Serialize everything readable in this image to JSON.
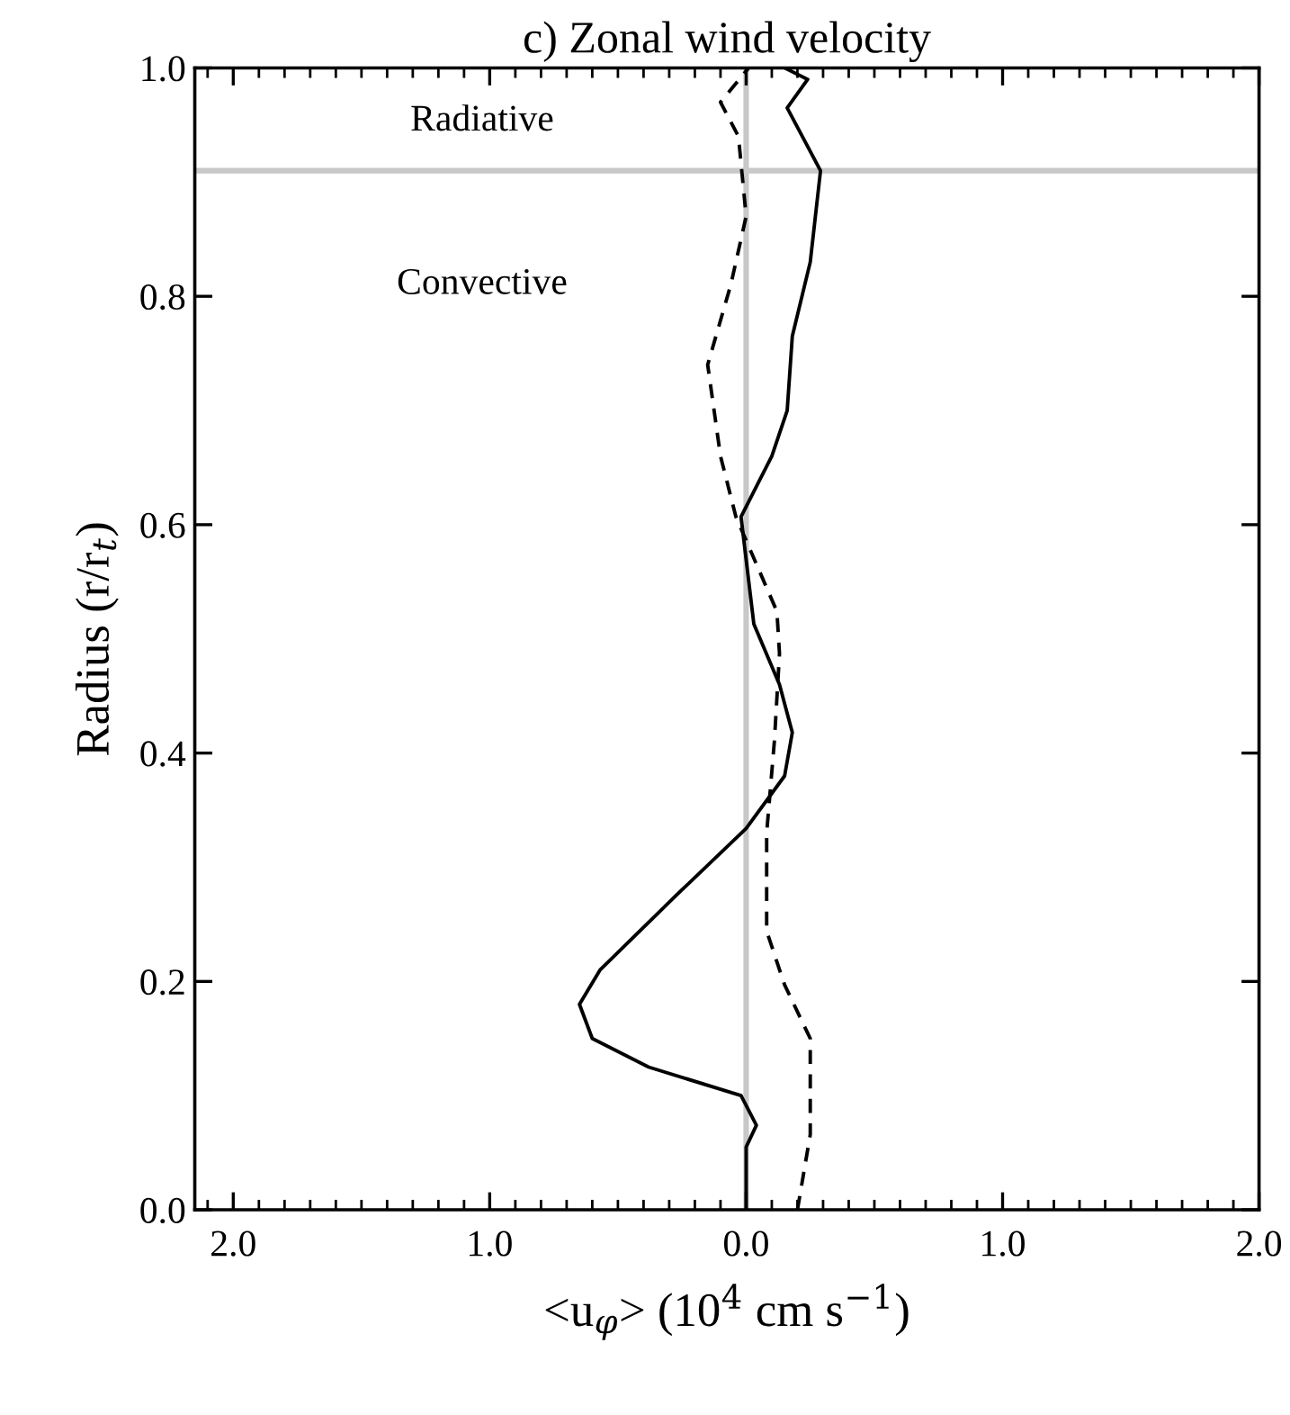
{
  "chart_data": {
    "type": "line",
    "title": "c) Zonal wind velocity",
    "xlabel": "<u$_{φ}$> (10$^{4}$ cm s$^{−1}$)",
    "ylabel": "Radius (r/r$_{t}$)",
    "series": [
      {
        "color": "#000000",
        "line_style": "solid",
        "x": [
          0.0,
          0.0,
          0.04,
          -0.02,
          -0.38,
          -0.6,
          -0.65,
          -0.57,
          -0.27,
          0.0,
          0.15,
          0.18,
          0.13,
          0.03,
          -0.02,
          0.1,
          0.16,
          0.18,
          0.25,
          0.29,
          0.16,
          0.24,
          0.15
        ],
        "values": [
          0.0,
          0.055,
          0.074,
          0.1,
          0.125,
          0.15,
          0.18,
          0.21,
          0.276,
          0.334,
          0.38,
          0.418,
          0.46,
          0.513,
          0.607,
          0.66,
          0.7,
          0.765,
          0.83,
          0.91,
          0.965,
          0.99,
          1.0
        ]
      },
      {
        "color": "#000000",
        "line_style": "dashed",
        "x": [
          0.2,
          0.25,
          0.25,
          0.15,
          0.08,
          0.08,
          0.11,
          0.13,
          0.12,
          -0.04,
          -0.1,
          -0.15,
          -0.06,
          0.0,
          -0.03,
          -0.1,
          0.01
        ],
        "values": [
          0.0,
          0.066,
          0.15,
          0.197,
          0.244,
          0.33,
          0.41,
          0.487,
          0.524,
          0.607,
          0.66,
          0.74,
          0.81,
          0.87,
          0.94,
          0.97,
          1.0
        ]
      }
    ],
    "xlim": [
      -2.15,
      2.0
    ],
    "ylim": [
      0.0,
      1.0
    ],
    "xticks": [
      {
        "value": -2,
        "label": "2.0"
      },
      {
        "value": -1,
        "label": "1.0"
      },
      {
        "value": 0,
        "label": "0.0"
      },
      {
        "value": 1,
        "label": "1.0"
      },
      {
        "value": 2,
        "label": "2.0"
      }
    ],
    "yticks": [
      {
        "value": 0,
        "label": "0.0"
      },
      {
        "value": 0.2,
        "label": "0.2"
      },
      {
        "value": 0.4,
        "label": "0.4"
      },
      {
        "value": 0.6,
        "label": "0.6"
      },
      {
        "value": 0.8,
        "label": "0.8"
      },
      {
        "value": 1,
        "label": "1.0"
      }
    ],
    "ref_lines": [
      {
        "axis": "x",
        "value": 0,
        "color": "#c8c8c8"
      },
      {
        "axis": "y",
        "value": 0.91,
        "color": "#c8c8c8"
      }
    ],
    "annotations": [
      "Radiative",
      "Convective"
    ],
    "grid": false,
    "legend": false,
    "marker": "none"
  }
}
